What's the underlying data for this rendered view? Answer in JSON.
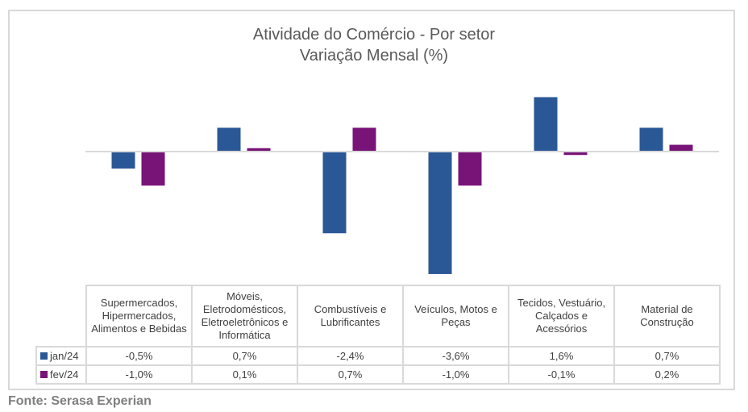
{
  "chart_data": {
    "type": "bar",
    "title": "Atividade do Comércio - Por setor",
    "subtitle": "Variação Mensal (%)",
    "xlabel": "",
    "ylabel": "",
    "ylim": [
      -3.6,
      2.0
    ],
    "grid": false,
    "legend": "table-left",
    "categories": [
      "Supermercados, Hipermercados, Alimentos e Bebidas",
      "Móveis, Eletrodomésticos, Eletroeletrônicos e Informática",
      "Combustíveis e Lubrificantes",
      "Veículos, Motos e Peças",
      "Tecidos, Vestuário, Calçados e Acessórios",
      "Material de Construção"
    ],
    "category_lines": [
      [
        "Supermercados,",
        "Hipermercados,",
        "Alimentos e Bebidas"
      ],
      [
        "Móveis,",
        "Eletrodomésticos,",
        "Eletroeletrônicos e",
        "Informática"
      ],
      [
        "Combustíveis e",
        "Lubrificantes"
      ],
      [
        "Veículos, Motos e",
        "Peças"
      ],
      [
        "Tecidos, Vestuário,",
        "Calçados e",
        "Acessórios"
      ],
      [
        "Material de",
        "Construção"
      ]
    ],
    "series": [
      {
        "name": "jan/24",
        "color": "#2a5796",
        "values": [
          -0.5,
          0.7,
          -2.4,
          -3.6,
          1.6,
          0.7
        ],
        "labels": [
          "-0,5%",
          "0,7%",
          "-2,4%",
          "-3,6%",
          "1,6%",
          "0,7%"
        ]
      },
      {
        "name": "fev/24",
        "color": "#781478",
        "values": [
          -1.0,
          0.1,
          0.7,
          -1.0,
          -0.1,
          0.2
        ],
        "labels": [
          "-1,0%",
          "0,1%",
          "0,7%",
          "-1,0%",
          "-0,1%",
          "0,2%"
        ]
      }
    ]
  },
  "source": "Fonte: Serasa Experian"
}
